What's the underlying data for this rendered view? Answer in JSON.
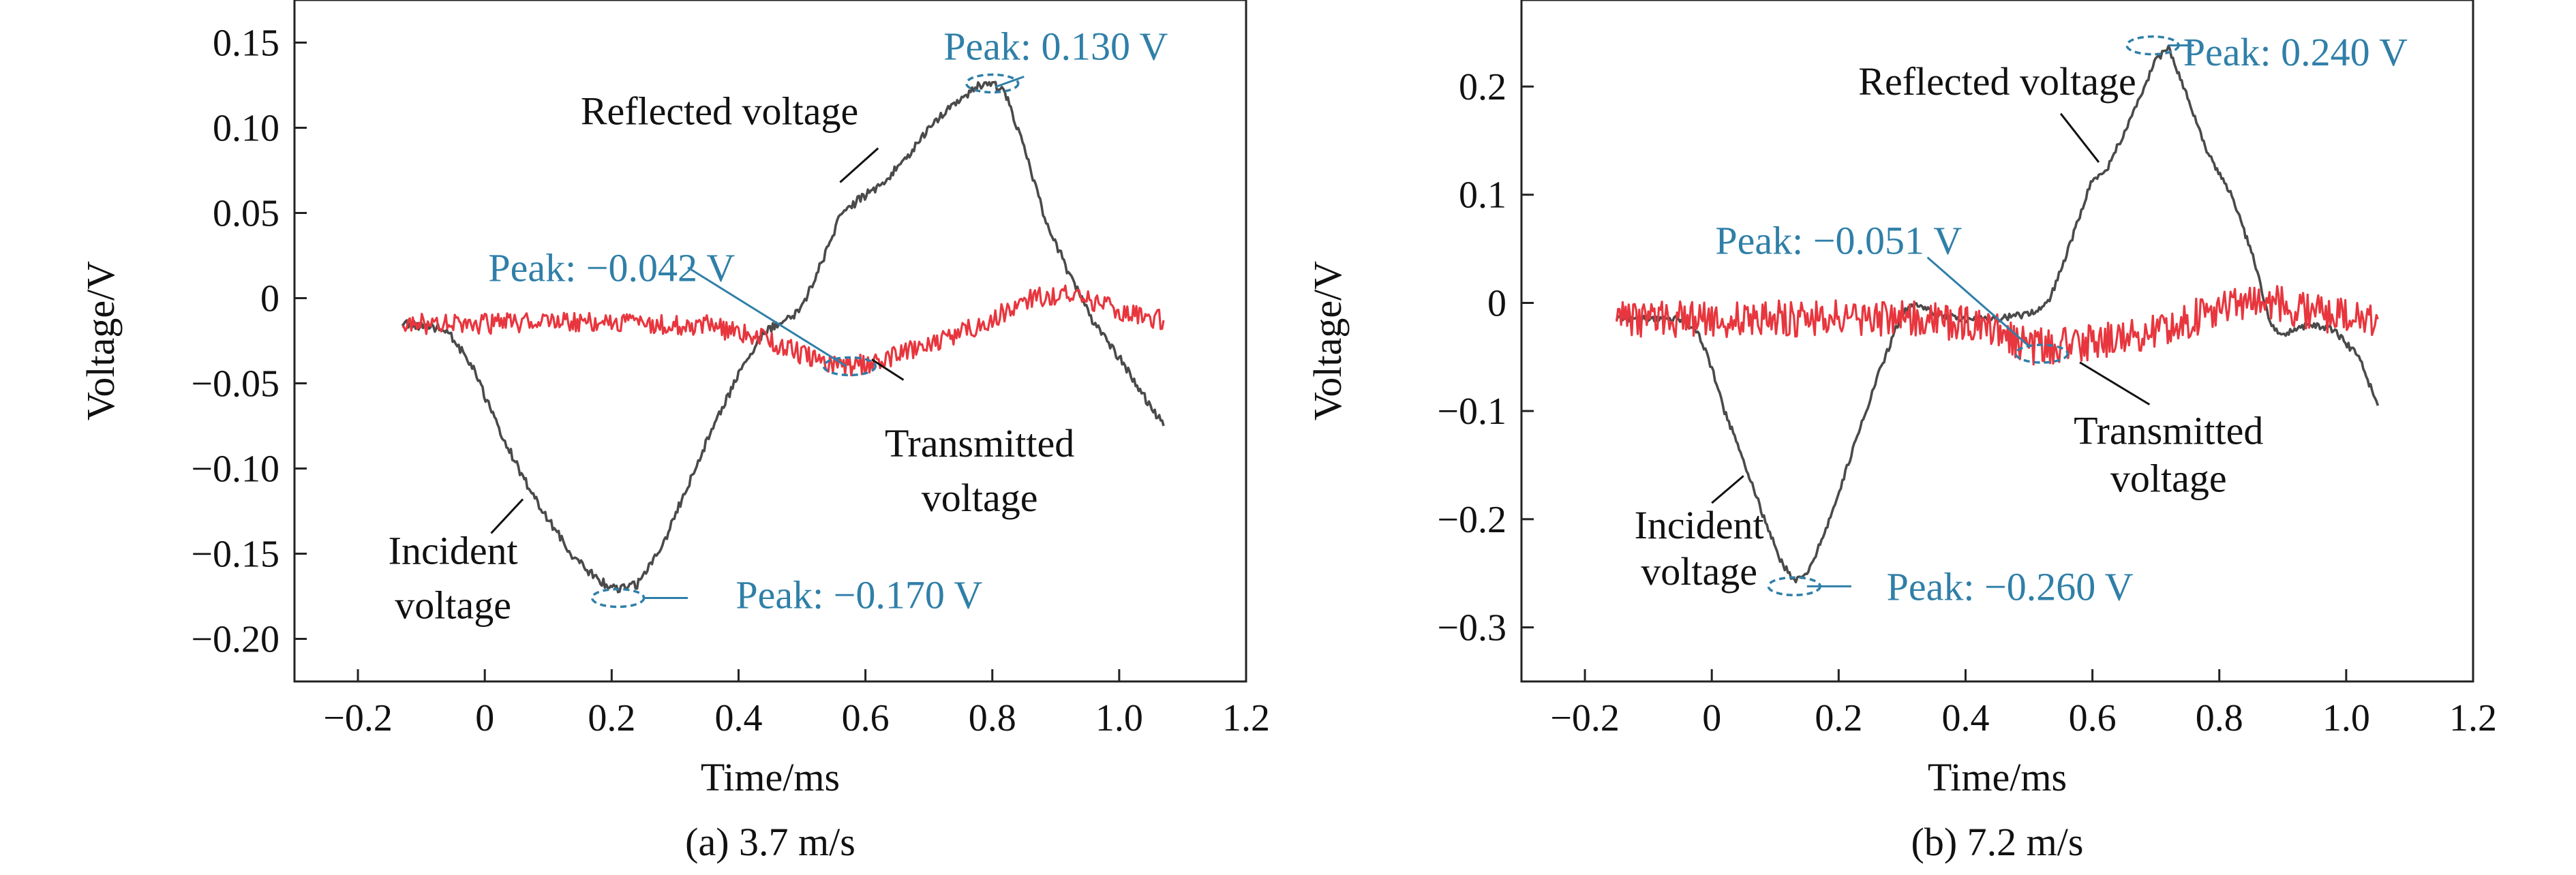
{
  "chart_data": [
    {
      "type": "line",
      "caption": "(a) 3.7 m/s",
      "xlabel": "Time/ms",
      "ylabel": "Voltage/V",
      "xlim": [
        -0.3,
        1.2
      ],
      "ylim": [
        -0.225,
        0.175
      ],
      "xticks": [
        -0.2,
        0,
        0.2,
        0.4,
        0.6,
        0.8,
        1.0,
        1.2
      ],
      "xtick_labels": [
        "−0.2",
        "0",
        "0.2",
        "0.4",
        "0.6",
        "0.8",
        "1.0",
        "1.2"
      ],
      "yticks": [
        0.15,
        0.1,
        0.05,
        0,
        -0.05,
        -0.1,
        -0.15,
        -0.2
      ],
      "ytick_labels": [
        "0.15",
        "0.10",
        "0.05",
        "0",
        "−0.05",
        "−0.10",
        "−0.15",
        "−0.20"
      ],
      "colors": {
        "black": "#4a4a4a",
        "red": "#e8363e",
        "peak": "#2f7fa8"
      },
      "series": [
        {
          "color": "black",
          "noise": 0.0025,
          "x": [
            -0.13,
            -0.06,
            -0.02,
            0.02,
            0.06,
            0.1,
            0.14,
            0.18,
            0.21,
            0.24,
            0.28,
            0.32,
            0.36,
            0.4,
            0.44,
            0.48,
            0.5,
            0.53,
            0.56,
            0.59,
            0.62,
            0.66,
            0.7,
            0.74,
            0.78,
            0.8,
            0.82,
            0.85,
            0.88,
            0.92,
            0.96,
            1.0,
            1.04,
            1.07
          ],
          "y": [
            -0.015,
            -0.018,
            -0.04,
            -0.075,
            -0.105,
            -0.13,
            -0.152,
            -0.166,
            -0.171,
            -0.168,
            -0.145,
            -0.11,
            -0.075,
            -0.045,
            -0.02,
            -0.012,
            -0.005,
            0.02,
            0.048,
            0.058,
            0.065,
            0.08,
            0.1,
            0.115,
            0.125,
            0.126,
            0.12,
            0.09,
            0.05,
            0.015,
            -0.015,
            -0.035,
            -0.058,
            -0.075
          ]
        },
        {
          "color": "red",
          "noise": 0.006,
          "x": [
            -0.13,
            0.0,
            0.2,
            0.35,
            0.45,
            0.52,
            0.58,
            0.64,
            0.72,
            0.8,
            0.86,
            0.92,
            0.97,
            1.02,
            1.07
          ],
          "y": [
            -0.015,
            -0.015,
            -0.014,
            -0.016,
            -0.025,
            -0.036,
            -0.04,
            -0.035,
            -0.025,
            -0.012,
            0.0,
            0.002,
            -0.004,
            -0.01,
            -0.013
          ]
        }
      ],
      "annotations": [
        {
          "text": "Reflected voltage",
          "kind": "label",
          "anchor": [
            0.37,
            0.11
          ],
          "line": [
            [
              0.56,
              0.068
            ],
            [
              0.62,
              0.088
            ]
          ]
        },
        {
          "text": "Incident",
          "kind": "label",
          "anchor": [
            -0.05,
            -0.148
          ],
          "line": [
            [
              0.06,
              -0.118
            ],
            [
              0.01,
              -0.138
            ]
          ]
        },
        {
          "text": "voltage",
          "kind": "label",
          "anchor": [
            -0.05,
            -0.18
          ],
          "line": null
        },
        {
          "text": "Transmitted",
          "kind": "label",
          "anchor": [
            0.78,
            -0.085
          ],
          "line": [
            [
              0.66,
              -0.048
            ],
            [
              0.61,
              -0.036
            ]
          ]
        },
        {
          "text": "voltage",
          "kind": "label",
          "anchor": [
            0.78,
            -0.117
          ],
          "line": null
        },
        {
          "text": "Peak: 0.130 V",
          "kind": "peak",
          "anchor": [
            0.9,
            0.148
          ],
          "line": [
            [
              0.805,
              0.124
            ],
            [
              0.85,
              0.13
            ]
          ],
          "ellipse": [
            0.8,
            0.126
          ]
        },
        {
          "text": "Peak: −0.042 V",
          "kind": "peak",
          "anchor": [
            0.2,
            0.018
          ],
          "line": [
            [
              0.32,
              0.018
            ],
            [
              0.57,
              -0.04
            ]
          ],
          "ellipse": [
            0.575,
            -0.04
          ]
        },
        {
          "text": "Peak: −0.170 V",
          "kind": "peak",
          "anchor": [
            0.59,
            -0.174
          ],
          "line": [
            [
              0.25,
              -0.176
            ],
            [
              0.32,
              -0.176
            ]
          ],
          "ellipse": [
            0.21,
            -0.176
          ]
        }
      ]
    },
    {
      "type": "line",
      "caption": "(b) 7.2 m/s",
      "xlabel": "Time/ms",
      "ylabel": "Voltage/V",
      "xlim": [
        -0.3,
        1.2
      ],
      "ylim": [
        -0.35,
        0.28
      ],
      "xticks": [
        -0.2,
        0,
        0.2,
        0.4,
        0.6,
        0.8,
        1.0,
        1.2
      ],
      "xtick_labels": [
        "−0.2",
        "0",
        "0.2",
        "0.4",
        "0.6",
        "0.8",
        "1.0",
        "1.2"
      ],
      "yticks": [
        0.2,
        0.1,
        0,
        -0.1,
        -0.2,
        -0.3
      ],
      "ytick_labels": [
        "0.2",
        "0.1",
        "0",
        "−0.1",
        "−0.2",
        "−0.3"
      ],
      "colors": {
        "black": "#4a4a4a",
        "red": "#e8363e",
        "peak": "#2f7fa8"
      },
      "series": [
        {
          "color": "black",
          "noise": 0.003,
          "x": [
            -0.15,
            -0.05,
            -0.02,
            0.0,
            0.02,
            0.05,
            0.08,
            0.11,
            0.13,
            0.15,
            0.18,
            0.22,
            0.26,
            0.3,
            0.32,
            0.35,
            0.4,
            0.45,
            0.5,
            0.53,
            0.55,
            0.58,
            0.6,
            0.62,
            0.66,
            0.7,
            0.72,
            0.75,
            0.78,
            0.82,
            0.86,
            0.88,
            0.9,
            0.94,
            0.98,
            1.02,
            1.05
          ],
          "y": [
            -0.015,
            -0.015,
            -0.03,
            -0.06,
            -0.1,
            -0.145,
            -0.195,
            -0.24,
            -0.257,
            -0.252,
            -0.21,
            -0.14,
            -0.07,
            -0.01,
            0.0,
            -0.01,
            -0.015,
            -0.015,
            -0.01,
            0.0,
            0.03,
            0.08,
            0.115,
            0.12,
            0.17,
            0.225,
            0.235,
            0.19,
            0.14,
            0.1,
            0.03,
            -0.02,
            -0.03,
            -0.02,
            -0.025,
            -0.05,
            -0.095
          ]
        },
        {
          "color": "red",
          "noise": 0.017,
          "x": [
            -0.15,
            0.0,
            0.2,
            0.35,
            0.45,
            0.5,
            0.55,
            0.62,
            0.7,
            0.78,
            0.86,
            0.92,
            0.98,
            1.05
          ],
          "y": [
            -0.015,
            -0.015,
            -0.014,
            -0.015,
            -0.025,
            -0.04,
            -0.04,
            -0.035,
            -0.025,
            -0.01,
            0.005,
            -0.005,
            -0.012,
            -0.015
          ]
        }
      ],
      "annotations": [
        {
          "text": "Reflected voltage",
          "kind": "label",
          "anchor": [
            0.45,
            0.205
          ],
          "line": [
            [
              0.61,
              0.13
            ],
            [
              0.55,
              0.175
            ]
          ]
        },
        {
          "text": "Incident",
          "kind": "label",
          "anchor": [
            -0.02,
            -0.205
          ],
          "line": [
            [
              0.05,
              -0.16
            ],
            [
              0.0,
              -0.185
            ]
          ]
        },
        {
          "text": "voltage",
          "kind": "label",
          "anchor": [
            -0.02,
            -0.248
          ],
          "line": null
        },
        {
          "text": "Transmitted",
          "kind": "label",
          "anchor": [
            0.72,
            -0.118
          ],
          "line": [
            [
              0.58,
              -0.055
            ],
            [
              0.69,
              -0.094
            ]
          ]
        },
        {
          "text": "voltage",
          "kind": "label",
          "anchor": [
            0.72,
            -0.162
          ],
          "line": null
        },
        {
          "text": "Peak: 0.240 V",
          "kind": "peak",
          "anchor": [
            0.92,
            0.232
          ],
          "line": [
            [
              0.72,
              0.238
            ],
            [
              0.76,
              0.238
            ]
          ],
          "ellipse": [
            0.695,
            0.238
          ]
        },
        {
          "text": "Peak: −0.051 V",
          "kind": "peak",
          "anchor": [
            0.2,
            0.058
          ],
          "line": [
            [
              0.34,
              0.042
            ],
            [
              0.5,
              -0.04
            ]
          ],
          "ellipse": [
            0.52,
            -0.047
          ]
        },
        {
          "text": "Peak: −0.260 V",
          "kind": "peak",
          "anchor": [
            0.47,
            -0.262
          ],
          "line": [
            [
              0.15,
              -0.262
            ],
            [
              0.22,
              -0.262
            ]
          ],
          "ellipse": [
            0.13,
            -0.262
          ]
        }
      ]
    }
  ]
}
